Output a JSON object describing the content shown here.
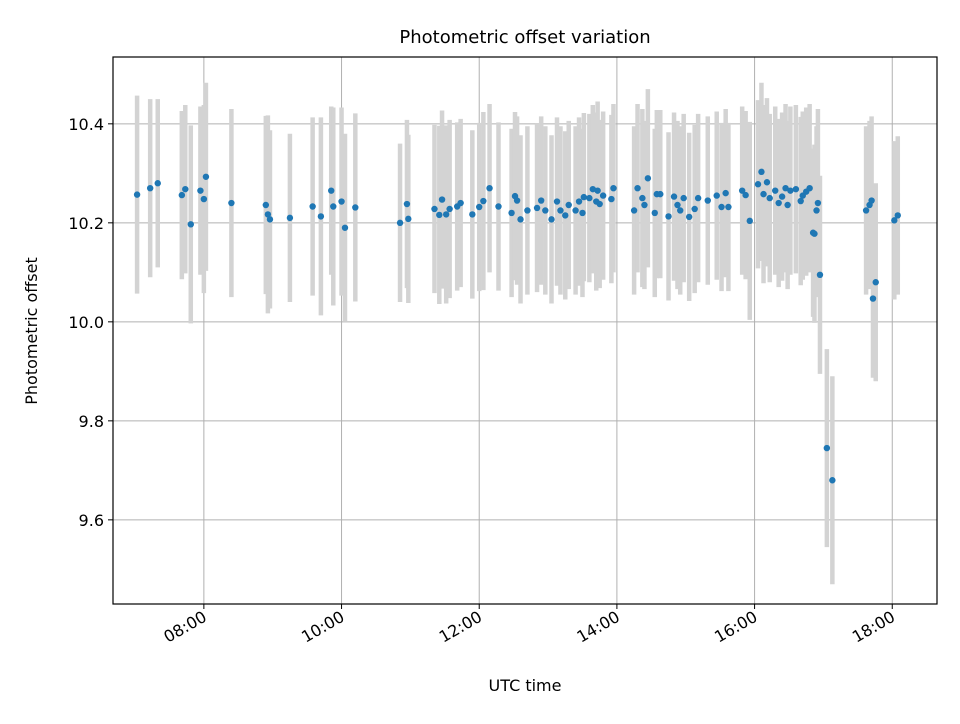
{
  "chart_data": {
    "type": "scatter",
    "title": "Photometric offset variation",
    "xlabel": "UTC time",
    "ylabel": "Photometric offset",
    "x_unit": "hours UTC",
    "xlim": [
      6.68,
      18.65
    ],
    "ylim": [
      9.43,
      10.535
    ],
    "xtick_values": [
      8,
      10,
      12,
      14,
      16,
      18
    ],
    "xtick_labels": [
      "08:00",
      "10:00",
      "12:00",
      "14:00",
      "16:00",
      "18:00"
    ],
    "ytick_values": [
      9.6,
      9.8,
      10.0,
      10.2,
      10.4
    ],
    "ytick_labels": [
      "9.6",
      "9.8",
      "10.0",
      "10.2",
      "10.4"
    ],
    "grid": true,
    "colors": {
      "points": "#1f77b4",
      "errorbars": "#d3d3d3",
      "grid": "#b0b0b0"
    },
    "series": [
      {
        "points": [
          [
            7.03,
            10.257,
            0.2
          ],
          [
            7.22,
            10.27,
            0.18
          ],
          [
            7.33,
            10.28,
            0.17
          ],
          [
            7.68,
            10.256,
            0.17
          ],
          [
            7.73,
            10.268,
            0.17
          ],
          [
            7.81,
            10.197,
            0.2
          ],
          [
            7.95,
            10.265,
            0.17
          ],
          [
            8.0,
            10.248,
            0.19
          ],
          [
            8.03,
            10.293,
            0.19
          ],
          [
            8.4,
            10.24,
            0.19
          ],
          [
            8.9,
            10.236,
            0.18
          ],
          [
            8.93,
            10.217,
            0.2
          ],
          [
            8.96,
            10.207,
            0.18
          ],
          [
            9.25,
            10.21,
            0.17
          ],
          [
            9.58,
            10.233,
            0.18
          ],
          [
            9.7,
            10.213,
            0.2
          ],
          [
            9.85,
            10.265,
            0.17
          ],
          [
            9.88,
            10.233,
            0.2
          ],
          [
            10.0,
            10.243,
            0.19
          ],
          [
            10.05,
            10.19,
            0.19
          ],
          [
            10.2,
            10.231,
            0.19
          ],
          [
            10.85,
            10.2,
            0.16
          ],
          [
            10.95,
            10.238,
            0.17
          ],
          [
            10.97,
            10.208,
            0.17
          ],
          [
            11.35,
            10.228,
            0.17
          ],
          [
            11.42,
            10.216,
            0.18
          ],
          [
            11.46,
            10.247,
            0.18
          ],
          [
            11.52,
            10.217,
            0.18
          ],
          [
            11.57,
            10.228,
            0.18
          ],
          [
            11.68,
            10.233,
            0.17
          ],
          [
            11.73,
            10.24,
            0.17
          ],
          [
            11.9,
            10.217,
            0.17
          ],
          [
            12.0,
            10.232,
            0.17
          ],
          [
            12.06,
            10.244,
            0.18
          ],
          [
            12.15,
            10.27,
            0.17
          ],
          [
            12.28,
            10.233,
            0.17
          ],
          [
            12.47,
            10.22,
            0.17
          ],
          [
            12.52,
            10.254,
            0.17
          ],
          [
            12.55,
            10.245,
            0.17
          ],
          [
            12.6,
            10.207,
            0.17
          ],
          [
            12.7,
            10.225,
            0.17
          ],
          [
            12.84,
            10.23,
            0.17
          ],
          [
            12.9,
            10.245,
            0.17
          ],
          [
            12.96,
            10.225,
            0.17
          ],
          [
            13.05,
            10.207,
            0.17
          ],
          [
            13.13,
            10.243,
            0.17
          ],
          [
            13.18,
            10.225,
            0.17
          ],
          [
            13.25,
            10.215,
            0.17
          ],
          [
            13.3,
            10.236,
            0.17
          ],
          [
            13.4,
            10.225,
            0.17
          ],
          [
            13.45,
            10.243,
            0.17
          ],
          [
            13.5,
            10.22,
            0.17
          ],
          [
            13.52,
            10.252,
            0.17
          ],
          [
            13.6,
            10.25,
            0.17
          ],
          [
            13.65,
            10.268,
            0.17
          ],
          [
            13.7,
            10.243,
            0.18
          ],
          [
            13.72,
            10.265,
            0.18
          ],
          [
            13.75,
            10.238,
            0.17
          ],
          [
            13.8,
            10.255,
            0.17
          ],
          [
            13.92,
            10.248,
            0.17
          ],
          [
            13.95,
            10.27,
            0.17
          ],
          [
            14.25,
            10.225,
            0.17
          ],
          [
            14.3,
            10.27,
            0.17
          ],
          [
            14.37,
            10.25,
            0.18
          ],
          [
            14.4,
            10.236,
            0.17
          ],
          [
            14.45,
            10.29,
            0.18
          ],
          [
            14.55,
            10.22,
            0.17
          ],
          [
            14.58,
            10.258,
            0.17
          ],
          [
            14.63,
            10.258,
            0.17
          ],
          [
            14.75,
            10.213,
            0.17
          ],
          [
            14.83,
            10.253,
            0.17
          ],
          [
            14.88,
            10.236,
            0.17
          ],
          [
            14.92,
            10.225,
            0.17
          ],
          [
            14.97,
            10.25,
            0.17
          ],
          [
            15.05,
            10.212,
            0.17
          ],
          [
            15.13,
            10.228,
            0.17
          ],
          [
            15.18,
            10.25,
            0.17
          ],
          [
            15.32,
            10.245,
            0.17
          ],
          [
            15.45,
            10.255,
            0.17
          ],
          [
            15.52,
            10.232,
            0.17
          ],
          [
            15.58,
            10.26,
            0.17
          ],
          [
            15.62,
            10.232,
            0.17
          ],
          [
            15.82,
            10.265,
            0.17
          ],
          [
            15.87,
            10.256,
            0.17
          ],
          [
            15.93,
            10.204,
            0.2
          ],
          [
            16.05,
            10.278,
            0.17
          ],
          [
            16.1,
            10.303,
            0.18
          ],
          [
            16.13,
            10.258,
            0.18
          ],
          [
            16.18,
            10.282,
            0.17
          ],
          [
            16.22,
            10.25,
            0.17
          ],
          [
            16.3,
            10.265,
            0.17
          ],
          [
            16.35,
            10.24,
            0.17
          ],
          [
            16.4,
            10.253,
            0.17
          ],
          [
            16.45,
            10.27,
            0.17
          ],
          [
            16.48,
            10.236,
            0.17
          ],
          [
            16.52,
            10.265,
            0.17
          ],
          [
            16.6,
            10.268,
            0.17
          ],
          [
            16.67,
            10.244,
            0.17
          ],
          [
            16.7,
            10.255,
            0.17
          ],
          [
            16.75,
            10.263,
            0.17
          ],
          [
            16.8,
            10.27,
            0.17
          ],
          [
            16.85,
            10.18,
            0.17
          ],
          [
            16.87,
            10.178,
            0.18
          ],
          [
            16.9,
            10.225,
            0.17
          ],
          [
            16.92,
            10.24,
            0.19
          ],
          [
            16.95,
            10.095,
            0.2
          ],
          [
            17.05,
            9.745,
            0.2
          ],
          [
            17.13,
            9.68,
            0.21
          ],
          [
            17.62,
            10.225,
            0.17
          ],
          [
            17.67,
            10.236,
            0.17
          ],
          [
            17.7,
            10.245,
            0.17
          ],
          [
            17.72,
            10.047,
            0.16
          ],
          [
            17.76,
            10.08,
            0.2
          ],
          [
            18.03,
            10.205,
            0.16
          ],
          [
            18.08,
            10.215,
            0.16
          ]
        ]
      }
    ]
  }
}
